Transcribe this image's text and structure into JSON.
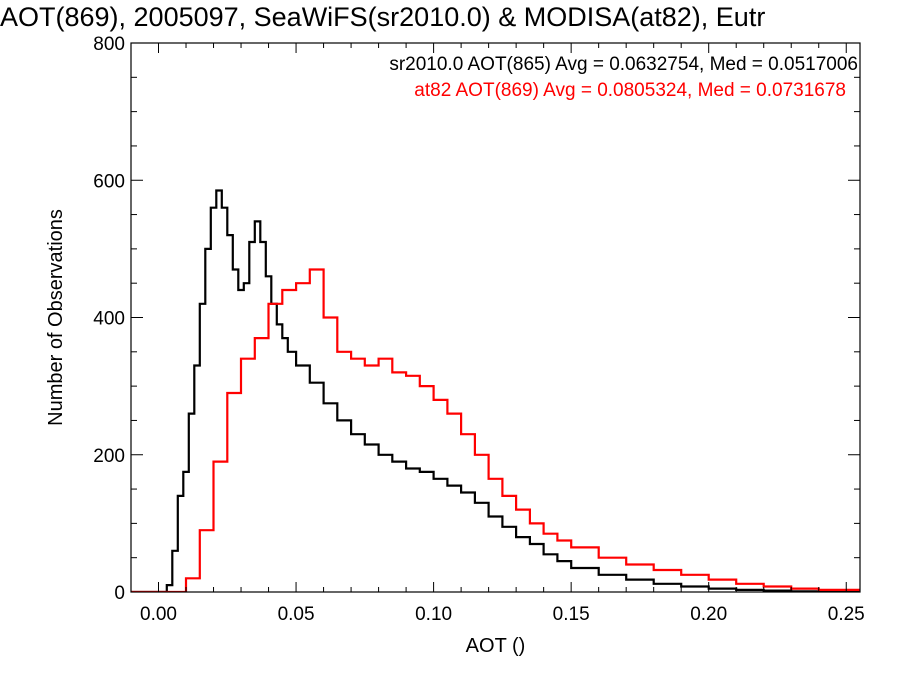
{
  "chart_data": {
    "type": "line",
    "title": "AOT(869), 2005097, SeaWiFS(sr2010.0) & MODISA(at82), Eutr",
    "xlabel": "AOT ()",
    "ylabel": "Number of Observations",
    "xlim": [
      -0.01,
      0.255
    ],
    "ylim": [
      0,
      800
    ],
    "x_ticks": [
      0.0,
      0.05,
      0.1,
      0.15,
      0.2,
      0.25
    ],
    "x_tick_labels": [
      "0.00",
      "0.05",
      "0.10",
      "0.15",
      "0.20",
      "0.25"
    ],
    "y_ticks": [
      0,
      200,
      400,
      600,
      800
    ],
    "y_tick_labels": [
      "0",
      "200",
      "400",
      "600",
      "800"
    ],
    "grid": false,
    "legend_position": "top-right",
    "series": [
      {
        "name": "sr2010.0 AOT(865) Avg = 0.0632754, Med = 0.0517006",
        "color": "#000000",
        "x": [
          -0.01,
          0.0,
          0.003,
          0.005,
          0.007,
          0.009,
          0.011,
          0.013,
          0.015,
          0.017,
          0.019,
          0.021,
          0.023,
          0.025,
          0.027,
          0.029,
          0.031,
          0.033,
          0.035,
          0.037,
          0.039,
          0.041,
          0.043,
          0.045,
          0.047,
          0.05,
          0.055,
          0.06,
          0.065,
          0.07,
          0.075,
          0.08,
          0.085,
          0.09,
          0.095,
          0.1,
          0.105,
          0.11,
          0.115,
          0.12,
          0.125,
          0.13,
          0.135,
          0.14,
          0.145,
          0.15,
          0.16,
          0.17,
          0.18,
          0.19,
          0.2,
          0.21,
          0.22,
          0.23,
          0.24,
          0.255
        ],
        "y": [
          0,
          0,
          10,
          60,
          140,
          175,
          260,
          330,
          420,
          500,
          560,
          585,
          560,
          520,
          470,
          440,
          450,
          510,
          540,
          510,
          460,
          420,
          390,
          370,
          350,
          330,
          305,
          275,
          250,
          230,
          215,
          200,
          190,
          180,
          175,
          165,
          155,
          145,
          130,
          110,
          95,
          80,
          70,
          55,
          45,
          35,
          25,
          18,
          12,
          8,
          5,
          3,
          2,
          1,
          0,
          0
        ]
      },
      {
        "name": "at82 AOT(869) Avg = 0.0805324, Med = 0.0731678",
        "color": "#ff0000",
        "x": [
          -0.01,
          0.0,
          0.01,
          0.015,
          0.02,
          0.025,
          0.03,
          0.035,
          0.04,
          0.045,
          0.05,
          0.055,
          0.06,
          0.065,
          0.07,
          0.075,
          0.08,
          0.085,
          0.09,
          0.095,
          0.1,
          0.105,
          0.11,
          0.115,
          0.12,
          0.125,
          0.13,
          0.135,
          0.14,
          0.145,
          0.15,
          0.16,
          0.17,
          0.18,
          0.19,
          0.2,
          0.21,
          0.22,
          0.23,
          0.24,
          0.255
        ],
        "y": [
          0,
          0,
          20,
          90,
          190,
          290,
          340,
          370,
          420,
          440,
          450,
          470,
          400,
          350,
          340,
          330,
          340,
          320,
          315,
          300,
          280,
          260,
          230,
          200,
          165,
          140,
          120,
          100,
          85,
          75,
          65,
          50,
          40,
          32,
          25,
          18,
          12,
          8,
          5,
          3,
          1
        ]
      }
    ]
  }
}
